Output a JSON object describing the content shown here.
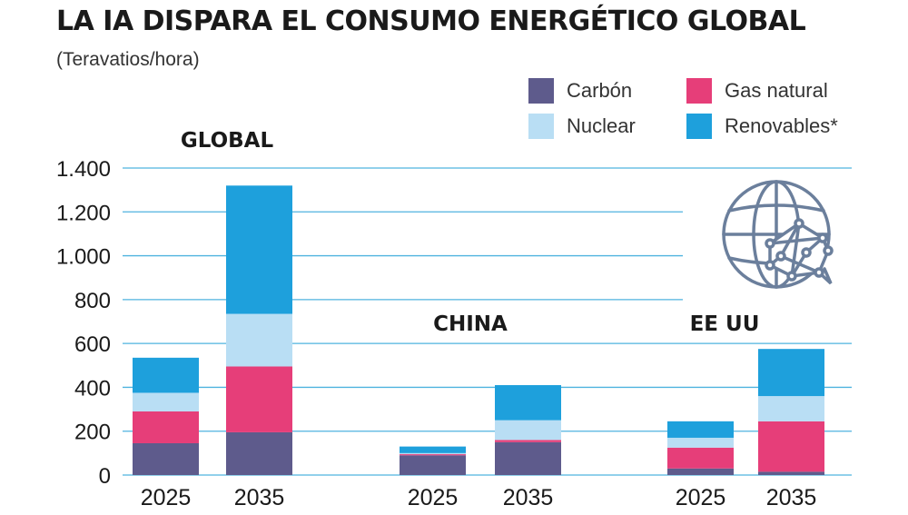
{
  "header": {
    "title": "LA IA DISPARA EL CONSUMO ENERGÉTICO GLOBAL",
    "subtitle": "(Teravatios/hora)"
  },
  "legend": [
    {
      "label": "Carbón",
      "color": "#5e5b8c"
    },
    {
      "label": "Gas natural",
      "color": "#e63e79"
    },
    {
      "label": "Nuclear",
      "color": "#b9def4"
    },
    {
      "label": "Renovables*",
      "color": "#1ea0dc"
    }
  ],
  "icon": {
    "name": "globe-network-icon",
    "color": "#6b7f9c"
  },
  "chart_data": {
    "type": "bar",
    "stacked": true,
    "title": "LA IA DISPARA EL CONSUMO ENERGÉTICO GLOBAL",
    "ylabel": "(Teravatios/hora)",
    "ylim": [
      0,
      1400
    ],
    "yticks": [
      0,
      200,
      400,
      600,
      800,
      1000,
      1200,
      1400
    ],
    "ytick_labels": [
      "0",
      "200",
      "400",
      "600",
      "800",
      "1.000",
      "1.200",
      "1.400"
    ],
    "grid": true,
    "legend_position": "top-right",
    "series_names": [
      "Carbón",
      "Gas natural",
      "Nuclear",
      "Renovables*"
    ],
    "groups": [
      {
        "name": "GLOBAL",
        "bars": [
          {
            "year": "2025",
            "values": [
              145,
              145,
              85,
              160
            ]
          },
          {
            "year": "2035",
            "values": [
              195,
              300,
              240,
              585
            ]
          }
        ]
      },
      {
        "name": "CHINA",
        "bars": [
          {
            "year": "2025",
            "values": [
              90,
              5,
              5,
              30
            ]
          },
          {
            "year": "2035",
            "values": [
              150,
              10,
              90,
              160
            ]
          }
        ]
      },
      {
        "name": "EE UU",
        "bars": [
          {
            "year": "2025",
            "values": [
              30,
              95,
              45,
              75
            ]
          },
          {
            "year": "2035",
            "values": [
              15,
              230,
              115,
              215
            ]
          }
        ]
      }
    ]
  }
}
